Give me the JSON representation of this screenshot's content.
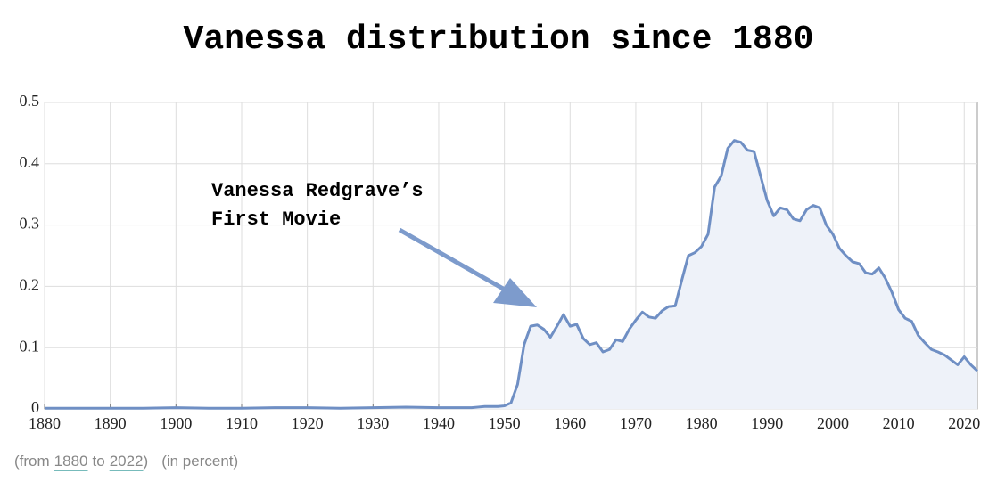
{
  "chart_data": {
    "type": "area",
    "title": "Vanessa distribution since 1880",
    "x": [
      1880,
      1885,
      1890,
      1895,
      1900,
      1905,
      1910,
      1915,
      1920,
      1925,
      1930,
      1935,
      1940,
      1945,
      1946,
      1947,
      1948,
      1949,
      1950,
      1951,
      1952,
      1953,
      1954,
      1955,
      1956,
      1957,
      1958,
      1959,
      1960,
      1961,
      1962,
      1963,
      1964,
      1965,
      1966,
      1967,
      1968,
      1969,
      1970,
      1971,
      1972,
      1973,
      1974,
      1975,
      1976,
      1977,
      1978,
      1979,
      1980,
      1981,
      1982,
      1983,
      1984,
      1985,
      1986,
      1987,
      1988,
      1989,
      1990,
      1991,
      1992,
      1993,
      1994,
      1995,
      1996,
      1997,
      1998,
      1999,
      2000,
      2001,
      2002,
      2003,
      2004,
      2005,
      2006,
      2007,
      2008,
      2009,
      2010,
      2011,
      2012,
      2013,
      2014,
      2015,
      2016,
      2017,
      2018,
      2019,
      2020,
      2021,
      2022
    ],
    "values": [
      0.001,
      0.001,
      0.001,
      0.001,
      0.002,
      0.001,
      0.001,
      0.002,
      0.002,
      0.001,
      0.002,
      0.003,
      0.002,
      0.002,
      0.003,
      0.004,
      0.004,
      0.004,
      0.005,
      0.01,
      0.04,
      0.105,
      0.135,
      0.137,
      0.13,
      0.117,
      0.135,
      0.154,
      0.135,
      0.138,
      0.115,
      0.105,
      0.108,
      0.093,
      0.097,
      0.113,
      0.11,
      0.13,
      0.145,
      0.158,
      0.15,
      0.148,
      0.16,
      0.167,
      0.168,
      0.21,
      0.25,
      0.255,
      0.265,
      0.285,
      0.362,
      0.38,
      0.425,
      0.438,
      0.435,
      0.422,
      0.42,
      0.38,
      0.34,
      0.315,
      0.328,
      0.325,
      0.31,
      0.307,
      0.325,
      0.332,
      0.328,
      0.3,
      0.285,
      0.262,
      0.25,
      0.24,
      0.237,
      0.222,
      0.22,
      0.23,
      0.213,
      0.19,
      0.162,
      0.148,
      0.143,
      0.12,
      0.108,
      0.097,
      0.093,
      0.088,
      0.08,
      0.072,
      0.085,
      0.072,
      0.062
    ],
    "color": "#6f8fc4",
    "fill_color": "#eef2f9",
    "xlim": [
      1880,
      2022
    ],
    "xticks": [
      1880,
      1890,
      1900,
      1910,
      1920,
      1930,
      1940,
      1950,
      1960,
      1970,
      1980,
      1990,
      2000,
      2010,
      2020
    ],
    "ylim": [
      0,
      0.5
    ],
    "yticks": [
      0,
      0.1,
      0.2,
      0.3,
      0.4,
      0.5
    ],
    "grid": true,
    "annotation": [
      "Vanessa Redgrave’s",
      "First Movie"
    ],
    "range_note": {
      "open": "(from",
      "start": "1880",
      "to": "to",
      "end": "2022",
      "close": ")"
    },
    "unit_note": "(in percent)"
  }
}
